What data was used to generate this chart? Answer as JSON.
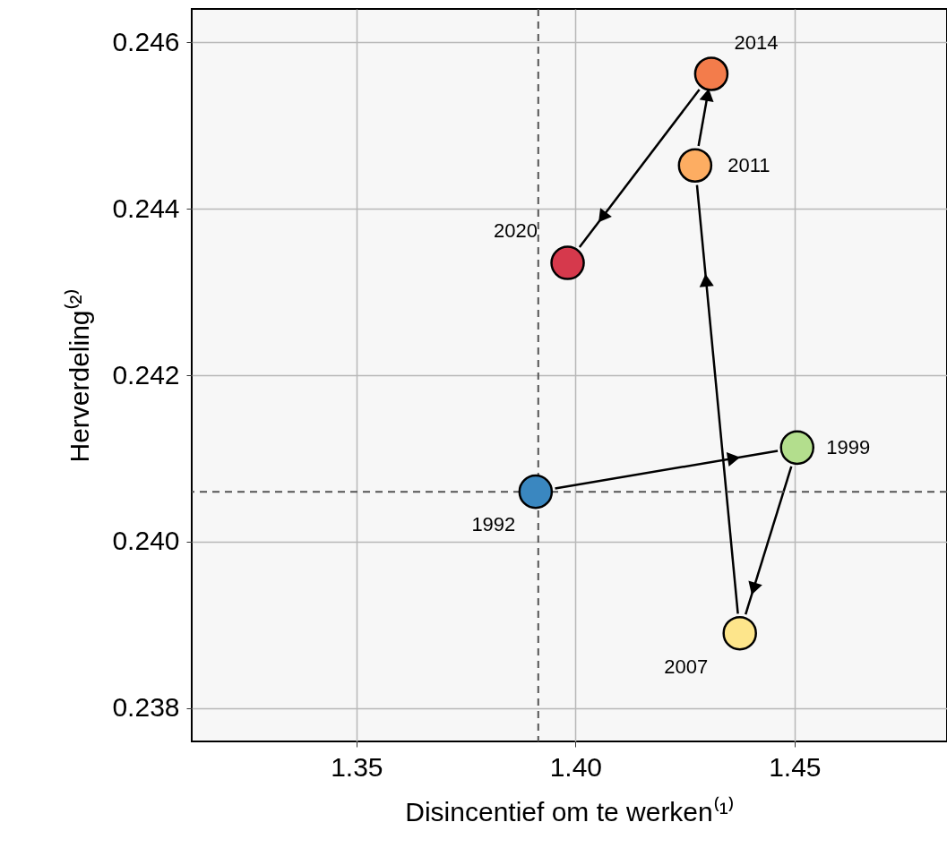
{
  "chart_data": {
    "type": "scatter",
    "xlabel": "Disincentief om te werken⁽¹⁾",
    "ylabel": "Herverdeling⁽²⁾",
    "x": [
      1.3909,
      1.4506,
      1.4375,
      1.4273,
      1.431,
      1.3982
    ],
    "series": [
      {
        "type": "scatter",
        "colors": [
          "#3a87c0",
          "#b3de8d",
          "#fde58b",
          "#fdad62",
          "#f37c4b",
          "#d6394c"
        ],
        "values": [
          0.2406,
          0.24113,
          0.2389,
          0.24452,
          0.24562,
          0.24335
        ]
      }
    ],
    "marker": "circle",
    "xlim": [
      1.3124,
      1.4848
    ],
    "ylim": [
      0.2376,
      0.2464
    ],
    "xticks": [
      1.35,
      {
        "value": 1.4,
        "label": "1.40"
      },
      1.45
    ],
    "yticks": [
      0.238,
      {
        "value": 0.24,
        "label": "0.240"
      },
      0.242,
      0.244,
      0.246
    ],
    "grid": true,
    "ref_lines": [
      {
        "axis": "x",
        "value": 1.3915,
        "line_style": "dashed",
        "color": "#555555"
      },
      {
        "axis": "y",
        "value": 0.2406,
        "line_style": "dashed",
        "color": "#555555"
      }
    ],
    "annotations": [
      {
        "text": "1992",
        "x": 1.3909,
        "y": 0.2406
      },
      {
        "text": "1999",
        "x": 1.4506,
        "y": 0.24113
      },
      {
        "text": "2007",
        "x": 1.4375,
        "y": 0.2389
      },
      {
        "text": "2011",
        "x": 1.4273,
        "y": 0.24452
      },
      {
        "text": "2014",
        "x": 1.431,
        "y": 0.24562
      },
      {
        "text": "2020",
        "x": 1.3982,
        "y": 0.24335
      }
    ]
  }
}
